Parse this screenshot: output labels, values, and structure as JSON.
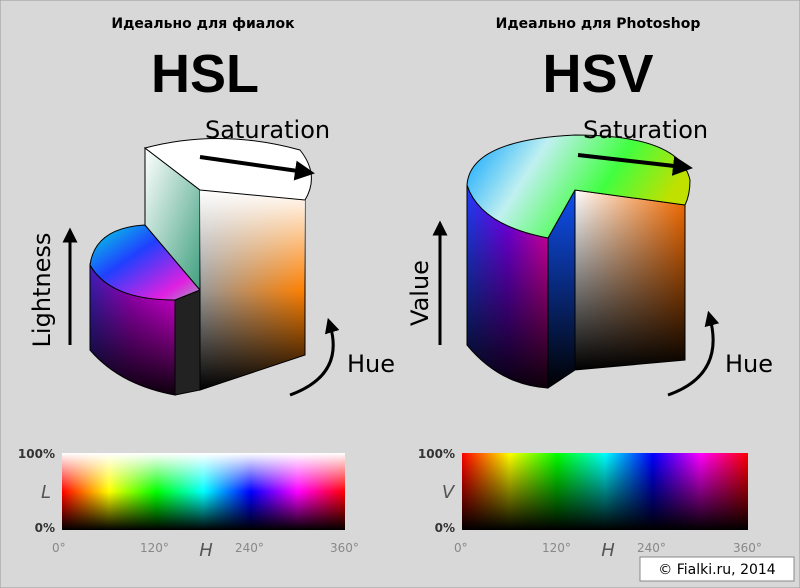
{
  "panels": [
    {
      "caption": "Идеально для фиалок",
      "title": "HSL",
      "saturation": "Saturation",
      "vertical": "Lightness",
      "hue": "Hue",
      "bar": {
        "top": "100%",
        "axis": "L",
        "bottom": "0%",
        "ticks": [
          "0°",
          "120°",
          "240°",
          "360°"
        ],
        "x_axis": "H"
      }
    },
    {
      "caption": "Идеально для Photoshop",
      "title": "HSV",
      "saturation": "Saturation",
      "vertical": "Value",
      "hue": "Hue",
      "bar": {
        "top": "100%",
        "axis": "V",
        "bottom": "0%",
        "ticks": [
          "0°",
          "120°",
          "240°",
          "360°"
        ],
        "x_axis": "H"
      }
    }
  ],
  "footer": "© Fialki.ru, 2014"
}
